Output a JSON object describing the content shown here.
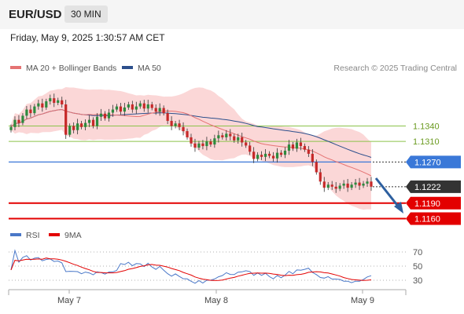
{
  "header": {
    "symbol": "EUR/USD",
    "timeframe": "30 MIN",
    "datetime": "Friday, May 9, 2025 1:30:57 AM CET"
  },
  "legend": {
    "ma20_label": "MA 20 + Bollinger Bands",
    "ma50_label": "MA 50",
    "copyright": "Research © 2025 Trading Central",
    "rsi_label": "RSI",
    "rsi_ma_label": "9MA"
  },
  "colors": {
    "ma20": "#e57373",
    "ma50": "#2c4f8c",
    "band": "#f9c9c9",
    "up": "#2d8a3e",
    "down": "#c62828",
    "resistance": "#8bc34a",
    "pivot": "#3a78d8",
    "support": "#e30000",
    "current": "#333333",
    "rsi": "#4a78c8",
    "rsi_ma": "#e30000",
    "forecast": "#2d5f9f"
  },
  "chart_data": [
    {
      "type": "candlestick",
      "x_labels": [
        "May 7",
        "May 8",
        "May 9"
      ],
      "ylim": [
        1.115,
        1.144
      ],
      "levels": [
        {
          "name": "resistance-2",
          "value": 1.134,
          "label": "1.1340",
          "kind": "resistance"
        },
        {
          "name": "resistance-1",
          "value": 1.131,
          "label": "1.1310",
          "kind": "resistance"
        },
        {
          "name": "pivot",
          "value": 1.127,
          "label": "1.1270",
          "kind": "pivot"
        },
        {
          "name": "current-price",
          "value": 1.1222,
          "label": "1.1222",
          "kind": "current"
        },
        {
          "name": "support-1",
          "value": 1.119,
          "label": "1.1190",
          "kind": "support"
        },
        {
          "name": "support-2",
          "value": 1.116,
          "label": "1.1160",
          "kind": "support"
        }
      ],
      "close": [
        1.1338,
        1.1352,
        1.1346,
        1.136,
        1.1372,
        1.1365,
        1.1378,
        1.1384,
        1.1376,
        1.1388,
        1.1394,
        1.1385,
        1.139,
        1.1382,
        1.1323,
        1.134,
        1.1332,
        1.1345,
        1.1338,
        1.1346,
        1.1352,
        1.134,
        1.1358,
        1.1364,
        1.1355,
        1.1366,
        1.1372,
        1.1378,
        1.1368,
        1.1376,
        1.1382,
        1.1372,
        1.1378,
        1.1384,
        1.1374,
        1.1382,
        1.1375,
        1.1368,
        1.1375,
        1.1365,
        1.135,
        1.134,
        1.1345,
        1.1338,
        1.133,
        1.1318,
        1.1306,
        1.1298,
        1.1306,
        1.1301,
        1.131,
        1.1304,
        1.1316,
        1.1322,
        1.1318,
        1.1325,
        1.132,
        1.1312,
        1.1318,
        1.1308,
        1.1302,
        1.129,
        1.1276,
        1.1284,
        1.128,
        1.1286,
        1.1282,
        1.1277,
        1.1288,
        1.1284,
        1.1292,
        1.1304,
        1.1296,
        1.1308,
        1.1301,
        1.1294,
        1.1286,
        1.127,
        1.125,
        1.1232,
        1.122,
        1.1226,
        1.1222,
        1.1218,
        1.1224,
        1.1228,
        1.122,
        1.1226,
        1.123,
        1.1224,
        1.1228,
        1.1232,
        1.1222
      ],
      "series": [
        {
          "name": "MA 20 + Bollinger Bands",
          "values": []
        },
        {
          "name": "MA 50",
          "values": []
        }
      ]
    },
    {
      "type": "line",
      "title": "RSI",
      "ylim": [
        20,
        80
      ],
      "yticks": [
        70,
        50,
        30
      ],
      "series": [
        {
          "name": "RSI",
          "values": []
        },
        {
          "name": "9MA",
          "values": []
        }
      ]
    }
  ]
}
